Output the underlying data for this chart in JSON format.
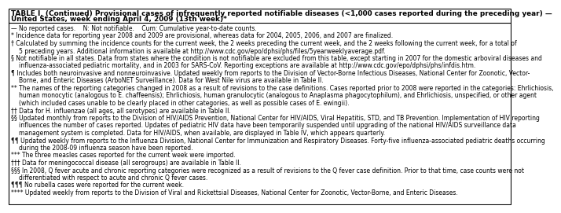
{
  "title_line1": "TABLE I. (Continued) Provisional cases of infrequently reported notifiable diseases (<1,000 cases reported during the preceding year) —",
  "title_line2": "United States, week ending April 4, 2009 (13th week)*",
  "border_color": "#000000",
  "background_color": "#ffffff",
  "title_fontsize": 6.4,
  "body_fontsize": 5.5,
  "footnotes": [
    {
      "— No reported cases.    N: Not notifiable.    Cum: Cumulative year-to-date counts.": ""
    },
    {
      "* ": "Incidence data for reporting year 2008 and 2009 are provisional, whereas data for 2004, 2005, 2006, and 2007 are finalized."
    },
    {
      "† ": "Calculated by summing the incidence counts for the current week, the 2 weeks preceding the current week, and the 2 weeks following the current week, for a total of\n5 preceding years. Additional information is available at http://www.cdc.gov/epo/dphsi/phs/files/5yearweeklyaverage.pdf."
    },
    {
      "§ ": "Not notifiable in all states. Data from states where the condition is not notifiable are excluded from this table, except starting in 2007 for the domestic arboviral diseases and\ninfluenza-associated pediatric mortality, and in 2003 for SARS-CoV. Reporting exceptions are available at http://www.cdc.gov/epo/dphsi/phs/infdis.htm."
    },
    {
      "¶ ": "Includes both neuroinvasive and nonneuroinvasive. Updated weekly from reports to the Division of Vector-Borne Infectious Diseases, National Center for Zoonotic, Vector-\nBorne, and Enteric Diseases (ArboNET Surveillance). Data for West Nile virus are available in Table II."
    },
    {
      "** ": "The names of the reporting categories changed in 2008 as a result of revisions to the case definitions. Cases reported prior to 2008 were reported in the categories: Ehrlichiosis,\nhuman monocytic (analogous to E. chaffeensis); Ehrlichiosis, human granulocytic (analogous to Anaplasma phagocytophilum), and Ehrlichiosis, unspecified, or other agent\n(which included cases unable to be clearly placed in other categories, as well as possible cases of E. ewingii)."
    },
    {
      "†† ": "Data for H. influenzae (all ages, all serotypes) are available in Table II."
    },
    {
      "§§ ": "Updated monthly from reports to the Division of HIV/AIDS Prevention, National Center for HIV/AIDS, Viral Hepatitis, STD, and TB Prevention. Implementation of HIV reporting\ninfluences the number of cases reported. Updates of pediatric HIV data have been temporarily suspended until upgrading of the national HIV/AIDS surveillance data\nmanagement system is completed. Data for HIV/AIDS, when available, are displayed in Table IV, which appears quarterly."
    },
    {
      "¶¶ ": "Updated weekly from reports to the Influenza Division, National Center for Immunization and Respiratory Diseases. Forty-five influenza-associated pediatric deaths occurring\nduring the 2008-09 influenza season have been reported."
    },
    {
      "*** ": "The three measles cases reported for the current week were imported."
    },
    {
      "††† ": "Data for meningococcal disease (all serogroups) are available in Table II."
    },
    {
      "§§§ ": "In 2008, Q fever acute and chronic reporting categories were recognized as a result of revisions to the Q fever case definition. Prior to that time, case counts were not\ndifferentiated with respect to acute and chronic Q fever cases."
    },
    {
      "¶¶¶ ": "No rubella cases were reported for the current week."
    },
    {
      "**** ": "Updated weekly from reports to the Division of Viral and Rickettsial Diseases, National Center for Zoonotic, Vector-Borne, and Enteric Diseases."
    }
  ]
}
